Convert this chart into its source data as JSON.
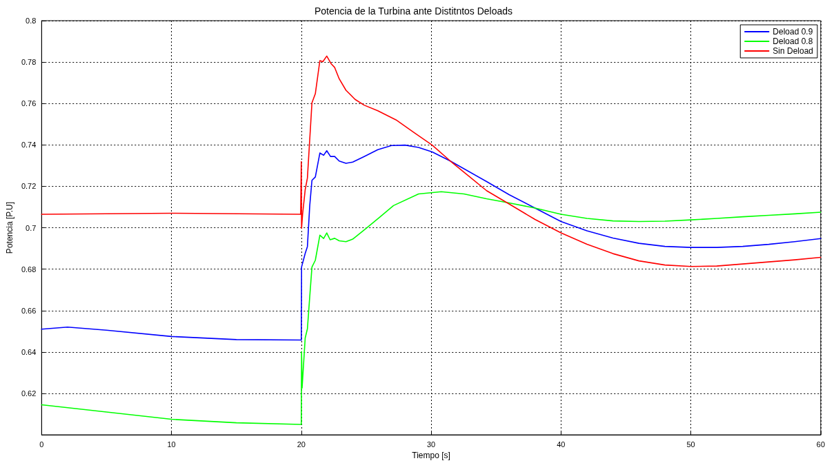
{
  "chart_data": {
    "type": "line",
    "title": "Potencia de la Turbina ante Distitntos Deloads",
    "xlabel": "Tiempo [s]",
    "ylabel": "Potencia [P.U]",
    "xlim": [
      0,
      60
    ],
    "xticks": [
      0,
      10,
      20,
      30,
      40,
      50,
      60
    ],
    "ylim": [
      0.6,
      0.8
    ],
    "yticks": [
      0.62,
      0.64,
      0.66,
      0.68,
      0.7,
      0.72,
      0.74,
      0.76,
      0.78,
      0.8
    ],
    "grid": true,
    "legend": "top right",
    "marker": "none",
    "line_style": "solid",
    "series": [
      {
        "name": "Deload 0.9",
        "color": "#0000ff",
        "x": [
          0,
          2,
          5,
          10,
          15,
          19.95,
          20,
          20.02,
          20.3,
          20.47,
          20.65,
          20.82,
          21.08,
          21.43,
          21.72,
          21.96,
          22.25,
          22.57,
          22.92,
          23.44,
          23.96,
          24.84,
          25.89,
          26.94,
          27.99,
          29.03,
          30.08,
          31.48,
          34.27,
          36,
          38,
          40,
          42,
          44,
          46,
          48,
          50,
          52,
          54,
          56,
          58,
          60
        ],
        "values": [
          0.651,
          0.652,
          0.6505,
          0.6475,
          0.646,
          0.6458,
          0.6457,
          0.681,
          0.6876,
          0.6909,
          0.7107,
          0.7229,
          0.7245,
          0.7361,
          0.735,
          0.7372,
          0.7344,
          0.7344,
          0.7322,
          0.7311,
          0.7317,
          0.7344,
          0.7377,
          0.7397,
          0.7399,
          0.7388,
          0.7366,
          0.7322,
          0.7223,
          0.716,
          0.7095,
          0.703,
          0.6985,
          0.695,
          0.6925,
          0.691,
          0.6905,
          0.6905,
          0.691,
          0.692,
          0.6933,
          0.6948
        ]
      },
      {
        "name": "Deload 0.8",
        "color": "#00ff00",
        "x": [
          0,
          5,
          10,
          15,
          19.95,
          20,
          20.02,
          20.06,
          20.3,
          20.47,
          20.65,
          20.82,
          21.08,
          21.43,
          21.72,
          21.96,
          22.22,
          22.57,
          22.92,
          23.44,
          23.96,
          25,
          26.06,
          27.1,
          29.03,
          30.78,
          32.53,
          34.27,
          36,
          38,
          40,
          42,
          44,
          46,
          48,
          50,
          52,
          54,
          56,
          58,
          60
        ],
        "values": [
          0.6145,
          0.611,
          0.6075,
          0.6058,
          0.605,
          0.605,
          0.6402,
          0.6226,
          0.6468,
          0.6512,
          0.6667,
          0.681,
          0.6843,
          0.6964,
          0.6948,
          0.6975,
          0.6942,
          0.6949,
          0.6937,
          0.6933,
          0.6945,
          0.6997,
          0.7052,
          0.7107,
          0.7163,
          0.7174,
          0.7163,
          0.714,
          0.712,
          0.7095,
          0.7065,
          0.7045,
          0.7033,
          0.703,
          0.7032,
          0.7038,
          0.7045,
          0.7053,
          0.706,
          0.7067,
          0.7075
        ]
      },
      {
        "name": "Sin Deload",
        "color": "#ff0000",
        "x": [
          0,
          10,
          19.95,
          20,
          20.02,
          20.1,
          20.3,
          20.47,
          20.82,
          21.08,
          21.43,
          21.66,
          21.96,
          22.31,
          22.57,
          22.92,
          23.44,
          24.14,
          24.84,
          25.89,
          27.29,
          28.68,
          30.08,
          31.48,
          34.27,
          36,
          38,
          40,
          42,
          44,
          46,
          48,
          50,
          52,
          54,
          56,
          58,
          60
        ],
        "values": [
          0.7065,
          0.707,
          0.7065,
          0.7319,
          0.6998,
          0.7065,
          0.7184,
          0.724,
          0.7603,
          0.7647,
          0.7807,
          0.7802,
          0.7829,
          0.7791,
          0.7774,
          0.7719,
          0.7664,
          0.762,
          0.7592,
          0.7565,
          0.7521,
          0.746,
          0.7399,
          0.7322,
          0.7179,
          0.7115,
          0.704,
          0.6975,
          0.692,
          0.6875,
          0.684,
          0.682,
          0.6813,
          0.6815,
          0.6825,
          0.6835,
          0.6845,
          0.6857
        ]
      }
    ]
  }
}
